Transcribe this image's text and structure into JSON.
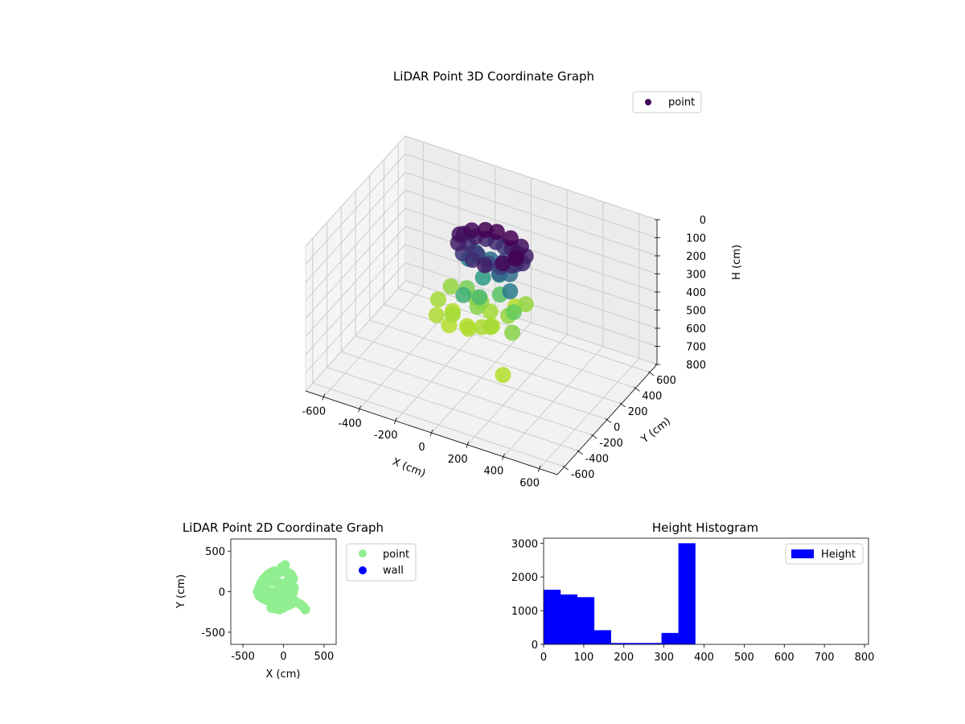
{
  "colors": {
    "viridis_low": "#440154",
    "viridis_mid": "#21918c",
    "viridis_high": "#b5de2b",
    "point_2d": "#90ee90",
    "wall": "#0000ff",
    "hist_bar": "#0000ff",
    "pane": "#f2f2f2",
    "grid": "#cccccc"
  },
  "chart_data": [
    {
      "id": "scatter3d",
      "type": "scatter",
      "title": "LiDAR Point 3D Coordinate Graph",
      "xlabel": "X (cm)",
      "ylabel": "Y (cm)",
      "zlabel": "H (cm)",
      "xlim": [
        -700,
        700
      ],
      "ylim": [
        -700,
        700
      ],
      "zlim": [
        800,
        0
      ],
      "xticks": [
        -600,
        -400,
        -200,
        0,
        200,
        400,
        600
      ],
      "yticks": [
        -600,
        -400,
        -200,
        0,
        200,
        400,
        600
      ],
      "zticks": [
        0,
        100,
        200,
        300,
        400,
        500,
        600,
        700,
        800
      ],
      "legend": [
        "point"
      ],
      "legend_loc": "upper-right",
      "colormap": "viridis",
      "series": [
        {
          "name": "point",
          "x": [
            -150,
            -100,
            -50,
            0,
            50,
            100,
            120,
            80,
            0,
            -80,
            -150,
            -200,
            -220,
            -180,
            -120,
            -60,
            20,
            90,
            140,
            150,
            110,
            60,
            -10,
            -90,
            -160,
            -210,
            -130,
            -40,
            40,
            110,
            0,
            -100,
            80,
            30,
            -60,
            -150,
            60,
            160,
            -30,
            10,
            100,
            -120,
            -190,
            70,
            150,
            200,
            -80,
            20,
            120,
            -200,
            -150,
            -60,
            40,
            130,
            170,
            10,
            -100,
            90,
            -30,
            200,
            260,
            180
          ],
          "y": [
            300,
            320,
            330,
            320,
            300,
            250,
            180,
            100,
            50,
            80,
            120,
            180,
            250,
            320,
            360,
            370,
            360,
            330,
            270,
            200,
            150,
            120,
            130,
            170,
            220,
            290,
            240,
            230,
            230,
            210,
            0,
            50,
            60,
            180,
            -100,
            200,
            100,
            0,
            100,
            -50,
            150,
            260,
            50,
            -50,
            100,
            120,
            -200,
            -250,
            -150,
            -100,
            -250,
            -300,
            -280,
            -200,
            -50,
            -80,
            -150,
            -220,
            0,
            -50,
            -220,
            -150
          ],
          "h": [
            200,
            205,
            210,
            215,
            200,
            190,
            180,
            185,
            200,
            210,
            215,
            200,
            190,
            185,
            180,
            175,
            180,
            190,
            200,
            205,
            210,
            220,
            230,
            220,
            210,
            200,
            250,
            260,
            240,
            230,
            380,
            360,
            340,
            300,
            320,
            280,
            250,
            270,
            300,
            330,
            260,
            280,
            380,
            390,
            400,
            380,
            390,
            400,
            410,
            390,
            395,
            400,
            395,
            390,
            380,
            370,
            400,
            395,
            370,
            350,
            370,
            660
          ]
        }
      ]
    },
    {
      "id": "scatter2d",
      "type": "scatter",
      "title": "LiDAR Point 2D Coordinate Graph",
      "xlabel": "X (cm)",
      "ylabel": "Y (cm)",
      "xlim": [
        -650,
        650
      ],
      "ylim": [
        -650,
        650
      ],
      "xticks": [
        -500,
        0,
        500
      ],
      "yticks": [
        -500,
        0,
        500
      ],
      "legend": [
        "point",
        "wall"
      ],
      "legend_loc": "outside-right",
      "series": [
        {
          "name": "point",
          "x": [
            -320,
            -300,
            -280,
            -250,
            -220,
            -200,
            -180,
            -160,
            -140,
            -120,
            -100,
            -80,
            -60,
            -40,
            -20,
            0,
            20,
            40,
            60,
            80,
            100,
            120,
            -300,
            -260,
            -220,
            -180,
            -140,
            -100,
            -60,
            -20,
            20,
            60,
            100,
            -280,
            -240,
            -200,
            -160,
            -120,
            -80,
            -40,
            0,
            40,
            80,
            120,
            -260,
            -220,
            -180,
            -140,
            -100,
            -60,
            -20,
            20,
            60,
            -200,
            -160,
            -120,
            -80,
            -40,
            0,
            40,
            -150,
            -100,
            -50,
            0,
            30,
            80,
            150,
            200,
            240,
            270,
            -20,
            20,
            100,
            60,
            130,
            110
          ],
          "y": [
            0,
            50,
            100,
            150,
            180,
            200,
            220,
            230,
            240,
            250,
            250,
            240,
            230,
            240,
            250,
            260,
            250,
            240,
            230,
            220,
            200,
            160,
            -50,
            -80,
            -100,
            -120,
            -150,
            -170,
            -180,
            -190,
            -180,
            -170,
            -150,
            0,
            0,
            0,
            0,
            0,
            0,
            0,
            0,
            0,
            0,
            0,
            80,
            100,
            120,
            130,
            120,
            110,
            100,
            90,
            80,
            -50,
            -60,
            -70,
            -80,
            -90,
            -80,
            -60,
            -200,
            -210,
            -220,
            -200,
            -150,
            -100,
            -120,
            -150,
            -180,
            -220,
            300,
            330,
            100,
            150,
            50,
            -30
          ]
        },
        {
          "name": "wall",
          "x": [],
          "y": []
        }
      ]
    },
    {
      "id": "histogram",
      "type": "bar",
      "title": "Height Histogram",
      "xlabel": "",
      "ylabel": "",
      "xlim": [
        0,
        810
      ],
      "ylim": [
        0,
        3150
      ],
      "xticks": [
        0,
        100,
        200,
        300,
        400,
        500,
        600,
        700,
        800
      ],
      "yticks": [
        0,
        1000,
        2000,
        3000
      ],
      "legend": [
        "Height"
      ],
      "legend_loc": "top-right",
      "bin_edges": [
        0,
        42,
        84,
        126,
        168,
        210,
        252,
        294,
        336,
        378,
        420,
        462,
        504,
        546,
        588,
        630,
        672,
        714,
        756,
        798
      ],
      "series": [
        {
          "name": "Height",
          "values": [
            1620,
            1480,
            1400,
            420,
            40,
            40,
            40,
            340,
            3000,
            0,
            0,
            0,
            0,
            0,
            0,
            2,
            0,
            0,
            0
          ]
        }
      ]
    }
  ]
}
